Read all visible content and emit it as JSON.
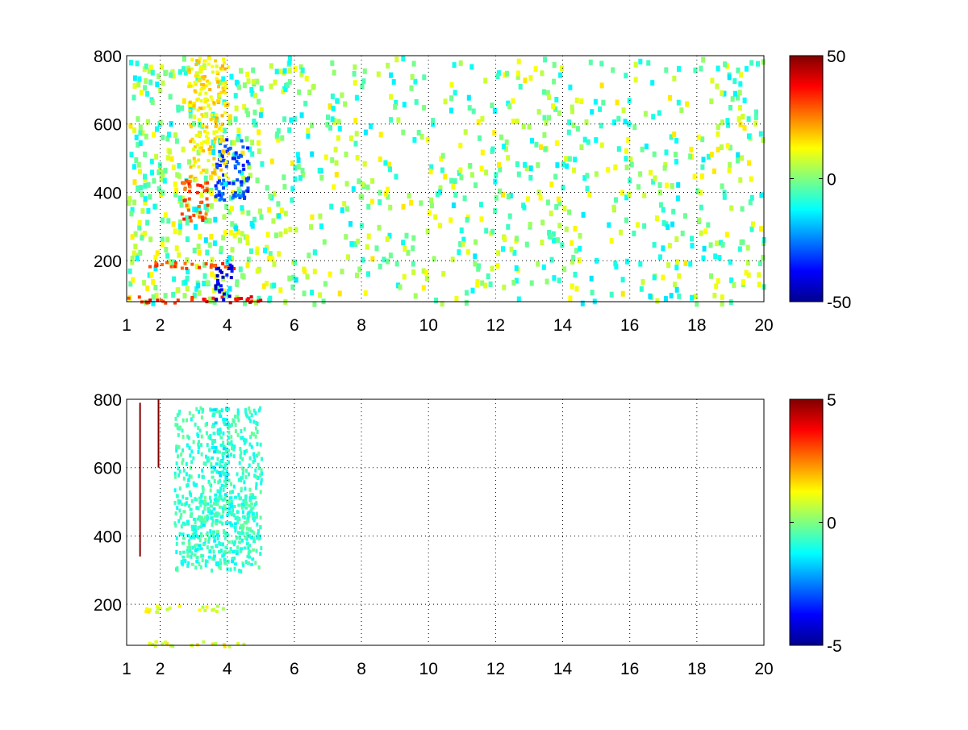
{
  "chart_data": [
    {
      "type": "heatmap",
      "title": "",
      "xlabel": "",
      "ylabel": "",
      "xlim": [
        1,
        20
      ],
      "ylim": [
        80,
        800
      ],
      "xticks": [
        1,
        2,
        4,
        6,
        8,
        10,
        12,
        14,
        16,
        18,
        20
      ],
      "yticks": [
        200,
        400,
        600,
        800
      ],
      "grid": true,
      "colormap": "jet",
      "clim": [
        -50,
        50
      ],
      "colorbar_ticks": [
        50,
        0,
        -50
      ],
      "regions": [
        {
          "x": [
            1.0,
            5.0
          ],
          "y": [
            80,
            100
          ],
          "value": 35
        },
        {
          "x": [
            1.2,
            4.2
          ],
          "y": [
            180,
            200
          ],
          "value": 30
        },
        {
          "x": [
            2.6,
            3.4
          ],
          "y": [
            320,
            440
          ],
          "value": 30
        },
        {
          "x": [
            3.6,
            4.6
          ],
          "y": [
            380,
            560
          ],
          "value": -30
        },
        {
          "x": [
            3.6,
            4.1
          ],
          "y": [
            80,
            200
          ],
          "value": -40
        },
        {
          "x": [
            2.8,
            4.0
          ],
          "y": [
            440,
            800
          ],
          "value": 15
        }
      ],
      "scatter_value_range": [
        -15,
        15
      ]
    },
    {
      "type": "heatmap",
      "title": "",
      "xlabel": "",
      "ylabel": "",
      "xlim": [
        1,
        20
      ],
      "ylim": [
        80,
        800
      ],
      "xticks": [
        1,
        2,
        4,
        6,
        8,
        10,
        12,
        14,
        16,
        18,
        20
      ],
      "yticks": [
        200,
        400,
        600,
        800
      ],
      "grid": true,
      "colormap": "jet",
      "clim": [
        -5,
        5
      ],
      "colorbar_ticks": [
        5,
        0,
        -5
      ],
      "regions": [
        {
          "x": [
            1.5,
            4.5
          ],
          "y": [
            80,
            95
          ],
          "value": 1.0
        },
        {
          "x": [
            1.5,
            3.9
          ],
          "y": [
            180,
            200
          ],
          "value": 1.0
        },
        {
          "x": [
            2.6,
            4.8
          ],
          "y": [
            320,
            520
          ],
          "value": -0.8
        },
        {
          "x": [
            3.5,
            4.0
          ],
          "y": [
            520,
            780
          ],
          "value": -1.0
        }
      ],
      "lines": [
        {
          "x": 1.4,
          "y": [
            340,
            790
          ],
          "value": 5
        },
        {
          "x": 1.95,
          "y": [
            600,
            800
          ],
          "value": 5
        }
      ]
    }
  ]
}
